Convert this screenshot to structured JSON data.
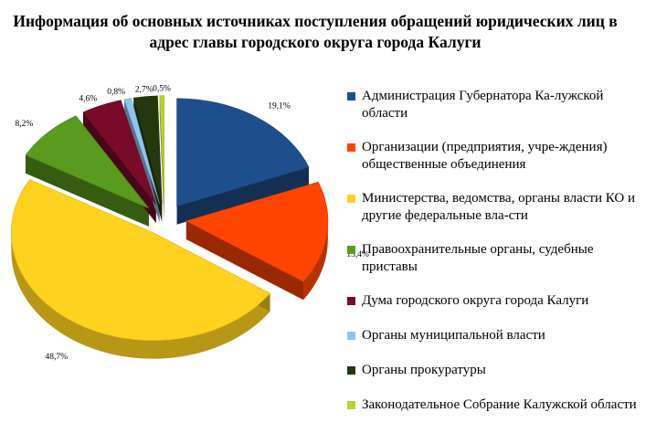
{
  "title": "Информация об основных источниках поступления обращений юридических лиц в адрес главы городского округа города Калуги",
  "chart_data": {
    "type": "pie",
    "style": "3d-exploded",
    "legend_position": "right",
    "categories": [
      "Администрация Губернатора Калужской области",
      "Организации (предприятия, учреждения) общественные объединения",
      "Министерства, ведомства, органы власти КО и другие федеральные власти",
      "Правоохранительные органы, судебные приставы",
      "Дума городского округа города Калуги",
      "Органы муниципальной власти",
      "Органы прокуратуры",
      "Законодательное Собрание Калужской области"
    ],
    "values": [
      19.1,
      15.4,
      48.7,
      8.2,
      4.6,
      0.8,
      2.7,
      0.5
    ],
    "labels": [
      "19,1%",
      "15,4%",
      "48,7%",
      "8,2%",
      "4,6%",
      "0,8%",
      "2,7%",
      "0,5%"
    ],
    "colors": [
      "#1f4e8c",
      "#ff4500",
      "#ffd21f",
      "#5a9a1e",
      "#7a0a2a",
      "#8ec5f0",
      "#24380e",
      "#b8d42a"
    ]
  },
  "legend": [
    {
      "label": "Администрация Губернатора Ка-лужской области"
    },
    {
      "label": "Организации (предприятия, учре-ждения) общественные объединения"
    },
    {
      "label": "Министерства, ведомства, органы власти КО и другие федеральные вла-сти"
    },
    {
      "label": "Правоохранительные органы, судебные приставы"
    },
    {
      "label": "Дума городского округа города Калуги"
    },
    {
      "label": "Органы муниципальной власти"
    },
    {
      "label": "Органы прокуратуры"
    },
    {
      "label": "Законодательное Собрание Калужской области"
    }
  ]
}
